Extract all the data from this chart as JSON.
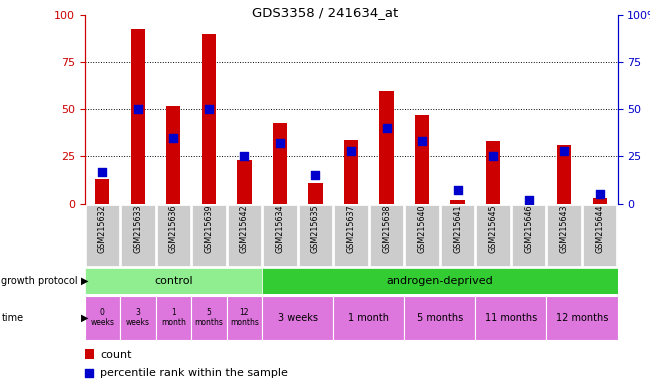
{
  "title": "GDS3358 / 241634_at",
  "samples": [
    "GSM215632",
    "GSM215633",
    "GSM215636",
    "GSM215639",
    "GSM215642",
    "GSM215634",
    "GSM215635",
    "GSM215637",
    "GSM215638",
    "GSM215640",
    "GSM215641",
    "GSM215645",
    "GSM215646",
    "GSM215643",
    "GSM215644"
  ],
  "count_values": [
    13,
    93,
    52,
    90,
    23,
    43,
    11,
    34,
    60,
    47,
    2,
    33,
    0,
    31,
    3
  ],
  "percentile_values": [
    17,
    50,
    35,
    50,
    25,
    32,
    15,
    28,
    40,
    33,
    7,
    25,
    2,
    28,
    5
  ],
  "bar_color": "#cc0000",
  "dot_color": "#0000cc",
  "ylim": [
    0,
    100
  ],
  "yticks": [
    0,
    25,
    50,
    75,
    100
  ],
  "control_color": "#90ee90",
  "androgen_color": "#33cc33",
  "time_control_color": "#dd77dd",
  "time_androgen_color": "#dd77dd",
  "time_labels_control": [
    "0\nweeks",
    "3\nweeks",
    "1\nmonth",
    "5\nmonths",
    "12\nmonths"
  ],
  "time_labels_androgen": [
    "3 weeks",
    "1 month",
    "5 months",
    "11 months",
    "12 months"
  ],
  "left_axis_color": "#cc0000",
  "right_axis_color": "#0000cc",
  "xticklabel_bg": "#cccccc",
  "legend_count_color": "#cc0000",
  "legend_dot_color": "#0000cc"
}
